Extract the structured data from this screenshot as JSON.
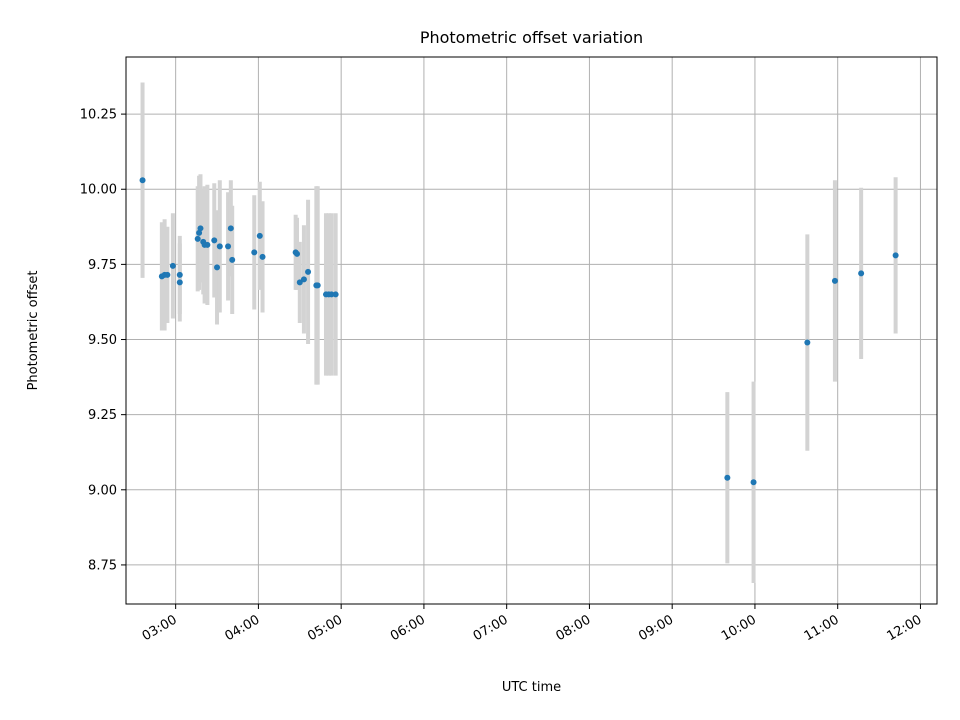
{
  "chart_data": {
    "type": "scatter",
    "title": "Photometric offset variation",
    "xlabel": "UTC time",
    "ylabel": "Photometric offset",
    "grid": true,
    "xlim": [
      "02:24",
      "12:12"
    ],
    "ylim": [
      8.62,
      10.44
    ],
    "x_ticks": [
      "03:00",
      "04:00",
      "05:00",
      "06:00",
      "07:00",
      "08:00",
      "09:00",
      "10:00",
      "11:00",
      "12:00"
    ],
    "y_ticks": [
      "8.75",
      "9.00",
      "9.25",
      "9.50",
      "9.75",
      "10.00",
      "10.25"
    ],
    "marker_color": "#1f77b4",
    "errorbar_color": "#d3d3d3",
    "points": [
      {
        "x": "02:36",
        "y": 10.03,
        "err": 0.325
      },
      {
        "x": "02:50",
        "y": 9.71,
        "err": 0.18
      },
      {
        "x": "02:52",
        "y": 9.715,
        "err": 0.185
      },
      {
        "x": "02:54",
        "y": 9.715,
        "err": 0.16
      },
      {
        "x": "02:58",
        "y": 9.745,
        "err": 0.175
      },
      {
        "x": "03:03",
        "y": 9.69,
        "err": 0.13
      },
      {
        "x": "03:03",
        "y": 9.715,
        "err": 0.13
      },
      {
        "x": "03:16",
        "y": 9.835,
        "err": 0.175
      },
      {
        "x": "03:17",
        "y": 9.855,
        "err": 0.19
      },
      {
        "x": "03:18",
        "y": 9.87,
        "err": 0.18
      },
      {
        "x": "03:20",
        "y": 9.825,
        "err": 0.175
      },
      {
        "x": "03:21",
        "y": 9.815,
        "err": 0.195
      },
      {
        "x": "03:23",
        "y": 9.815,
        "err": 0.2
      },
      {
        "x": "03:28",
        "y": 9.83,
        "err": 0.19
      },
      {
        "x": "03:30",
        "y": 9.74,
        "err": 0.19
      },
      {
        "x": "03:32",
        "y": 9.81,
        "err": 0.22
      },
      {
        "x": "03:38",
        "y": 9.81,
        "err": 0.18
      },
      {
        "x": "03:40",
        "y": 9.87,
        "err": 0.16
      },
      {
        "x": "03:41",
        "y": 9.765,
        "err": 0.18
      },
      {
        "x": "03:57",
        "y": 9.79,
        "err": 0.19
      },
      {
        "x": "04:01",
        "y": 9.845,
        "err": 0.18
      },
      {
        "x": "04:03",
        "y": 9.775,
        "err": 0.185
      },
      {
        "x": "04:27",
        "y": 9.79,
        "err": 0.125
      },
      {
        "x": "04:28",
        "y": 9.785,
        "err": 0.12
      },
      {
        "x": "04:30",
        "y": 9.69,
        "err": 0.135
      },
      {
        "x": "04:33",
        "y": 9.7,
        "err": 0.18
      },
      {
        "x": "04:36",
        "y": 9.725,
        "err": 0.24
      },
      {
        "x": "04:42",
        "y": 9.68,
        "err": 0.33
      },
      {
        "x": "04:43",
        "y": 9.68,
        "err": 0.33
      },
      {
        "x": "04:49",
        "y": 9.65,
        "err": 0.27
      },
      {
        "x": "04:51",
        "y": 9.65,
        "err": 0.27
      },
      {
        "x": "04:53",
        "y": 9.65,
        "err": 0.27
      },
      {
        "x": "04:56",
        "y": 9.65,
        "err": 0.27
      },
      {
        "x": "09:40",
        "y": 9.04,
        "err": 0.285
      },
      {
        "x": "09:59",
        "y": 9.025,
        "err": 0.335
      },
      {
        "x": "10:38",
        "y": 9.49,
        "err": 0.36
      },
      {
        "x": "10:58",
        "y": 9.695,
        "err": 0.335
      },
      {
        "x": "11:17",
        "y": 9.72,
        "err": 0.285
      },
      {
        "x": "11:42",
        "y": 9.78,
        "err": 0.26
      }
    ]
  }
}
